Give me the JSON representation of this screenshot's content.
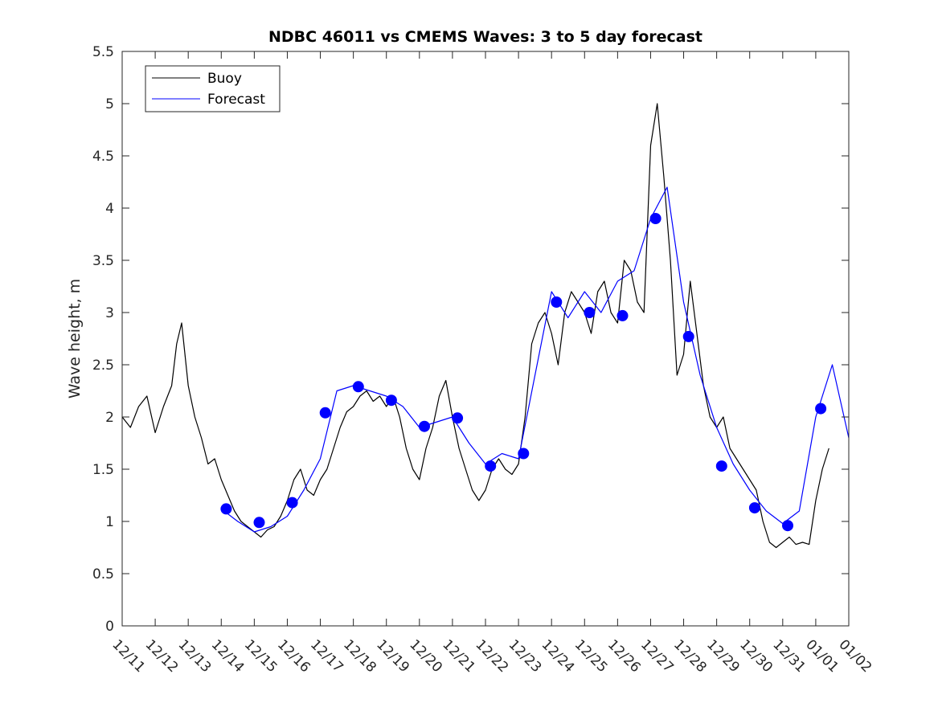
{
  "chart_data": {
    "type": "line",
    "title": "NDBC 46011 vs CMEMS Waves: 3 to 5 day forecast",
    "xlabel": "",
    "ylabel": "Wave height, m",
    "ylim": [
      0,
      5.5
    ],
    "yticks": [
      "0",
      "0.5",
      "1",
      "1.5",
      "2",
      "2.5",
      "3",
      "3.5",
      "4",
      "4.5",
      "5",
      "5.5"
    ],
    "xlim": [
      0,
      22
    ],
    "xticks": [
      "12/11",
      "12/12",
      "12/13",
      "12/14",
      "12/15",
      "12/16",
      "12/17",
      "12/18",
      "12/19",
      "12/20",
      "12/21",
      "12/22",
      "12/23",
      "12/24",
      "12/25",
      "12/26",
      "12/27",
      "12/28",
      "12/29",
      "12/30",
      "12/31",
      "01/01",
      "01/02"
    ],
    "grid": false,
    "legend_position": "top-left",
    "series": [
      {
        "name": "Buoy",
        "color": "#000000",
        "x": [
          0,
          0.25,
          0.5,
          0.75,
          1.0,
          1.25,
          1.5,
          1.65,
          1.8,
          2.0,
          2.2,
          2.4,
          2.6,
          2.8,
          3.0,
          3.2,
          3.4,
          3.6,
          3.8,
          4.0,
          4.2,
          4.4,
          4.6,
          4.8,
          5.0,
          5.2,
          5.4,
          5.6,
          5.8,
          6.0,
          6.2,
          6.4,
          6.6,
          6.8,
          7.0,
          7.2,
          7.4,
          7.6,
          7.8,
          8.0,
          8.2,
          8.4,
          8.6,
          8.8,
          9.0,
          9.2,
          9.4,
          9.6,
          9.8,
          10.0,
          10.2,
          10.4,
          10.6,
          10.8,
          11.0,
          11.2,
          11.4,
          11.6,
          11.8,
          12.0,
          12.2,
          12.4,
          12.6,
          12.8,
          13.0,
          13.2,
          13.4,
          13.6,
          13.8,
          14.0,
          14.2,
          14.4,
          14.6,
          14.8,
          15.0,
          15.2,
          15.4,
          15.6,
          15.8,
          16.0,
          16.2,
          16.4,
          16.6,
          16.8,
          17.0,
          17.2,
          17.4,
          17.6,
          17.8,
          18.0,
          18.2,
          18.4,
          18.6,
          18.8,
          19.0,
          19.2,
          19.4,
          19.6,
          19.8,
          20.0,
          20.2,
          20.4,
          20.6,
          20.8,
          21.0,
          21.2,
          21.4
        ],
        "values": [
          2.0,
          1.9,
          2.1,
          2.2,
          1.85,
          2.1,
          2.3,
          2.7,
          2.9,
          2.3,
          2.0,
          1.8,
          1.55,
          1.6,
          1.4,
          1.25,
          1.1,
          1.0,
          0.95,
          0.9,
          0.85,
          0.92,
          0.95,
          1.05,
          1.2,
          1.4,
          1.5,
          1.3,
          1.25,
          1.4,
          1.5,
          1.7,
          1.9,
          2.05,
          2.1,
          2.2,
          2.25,
          2.15,
          2.2,
          2.1,
          2.2,
          2.0,
          1.7,
          1.5,
          1.4,
          1.7,
          1.9,
          2.2,
          2.35,
          2.0,
          1.7,
          1.5,
          1.3,
          1.2,
          1.3,
          1.5,
          1.6,
          1.5,
          1.45,
          1.55,
          2.0,
          2.7,
          2.9,
          3.0,
          2.8,
          2.5,
          3.0,
          3.2,
          3.1,
          3.0,
          2.8,
          3.2,
          3.3,
          3.0,
          2.9,
          3.5,
          3.4,
          3.1,
          3.0,
          4.6,
          5.0,
          4.3,
          3.5,
          2.4,
          2.6,
          3.3,
          2.8,
          2.3,
          2.0,
          1.9,
          2.0,
          1.7,
          1.6,
          1.5,
          1.4,
          1.3,
          1.0,
          0.8,
          0.75,
          0.8,
          0.85,
          0.78,
          0.8,
          0.78,
          1.2,
          1.5,
          1.7
        ]
      },
      {
        "name": "Forecast",
        "color": "#0000ff",
        "x": [
          3.0,
          3.5,
          4.0,
          4.5,
          5.0,
          5.5,
          6.0,
          6.5,
          7.0,
          7.5,
          8.0,
          8.5,
          9.0,
          9.5,
          10.0,
          10.5,
          11.0,
          11.5,
          12.0,
          12.5,
          13.0,
          13.5,
          14.0,
          14.5,
          15.0,
          15.5,
          16.0,
          16.5,
          17.0,
          17.5,
          18.0,
          18.5,
          19.0,
          19.5,
          20.0,
          20.5,
          21.0,
          21.5,
          22.0
        ],
        "values": [
          1.12,
          1.0,
          0.9,
          0.95,
          1.05,
          1.3,
          1.6,
          2.25,
          2.3,
          2.25,
          2.2,
          2.1,
          1.9,
          1.95,
          2.0,
          1.75,
          1.55,
          1.65,
          1.6,
          2.4,
          3.2,
          2.95,
          3.2,
          3.0,
          3.3,
          3.4,
          3.9,
          4.2,
          3.1,
          2.4,
          1.9,
          1.55,
          1.3,
          1.1,
          0.98,
          1.1,
          2.0,
          2.5,
          1.8
        ]
      }
    ],
    "markers": {
      "series": "Forecast",
      "x": [
        3.15,
        4.15,
        5.15,
        6.15,
        7.15,
        8.15,
        9.15,
        10.15,
        11.15,
        12.15,
        13.15,
        14.15,
        15.15,
        16.15,
        17.15,
        18.15,
        19.15,
        20.15,
        21.15
      ],
      "values": [
        1.12,
        0.99,
        1.18,
        2.04,
        2.29,
        2.16,
        1.91,
        1.99,
        1.53,
        1.65,
        3.1,
        3.0,
        2.97,
        3.9,
        2.77,
        1.53,
        1.13,
        0.96,
        2.08
      ]
    }
  }
}
